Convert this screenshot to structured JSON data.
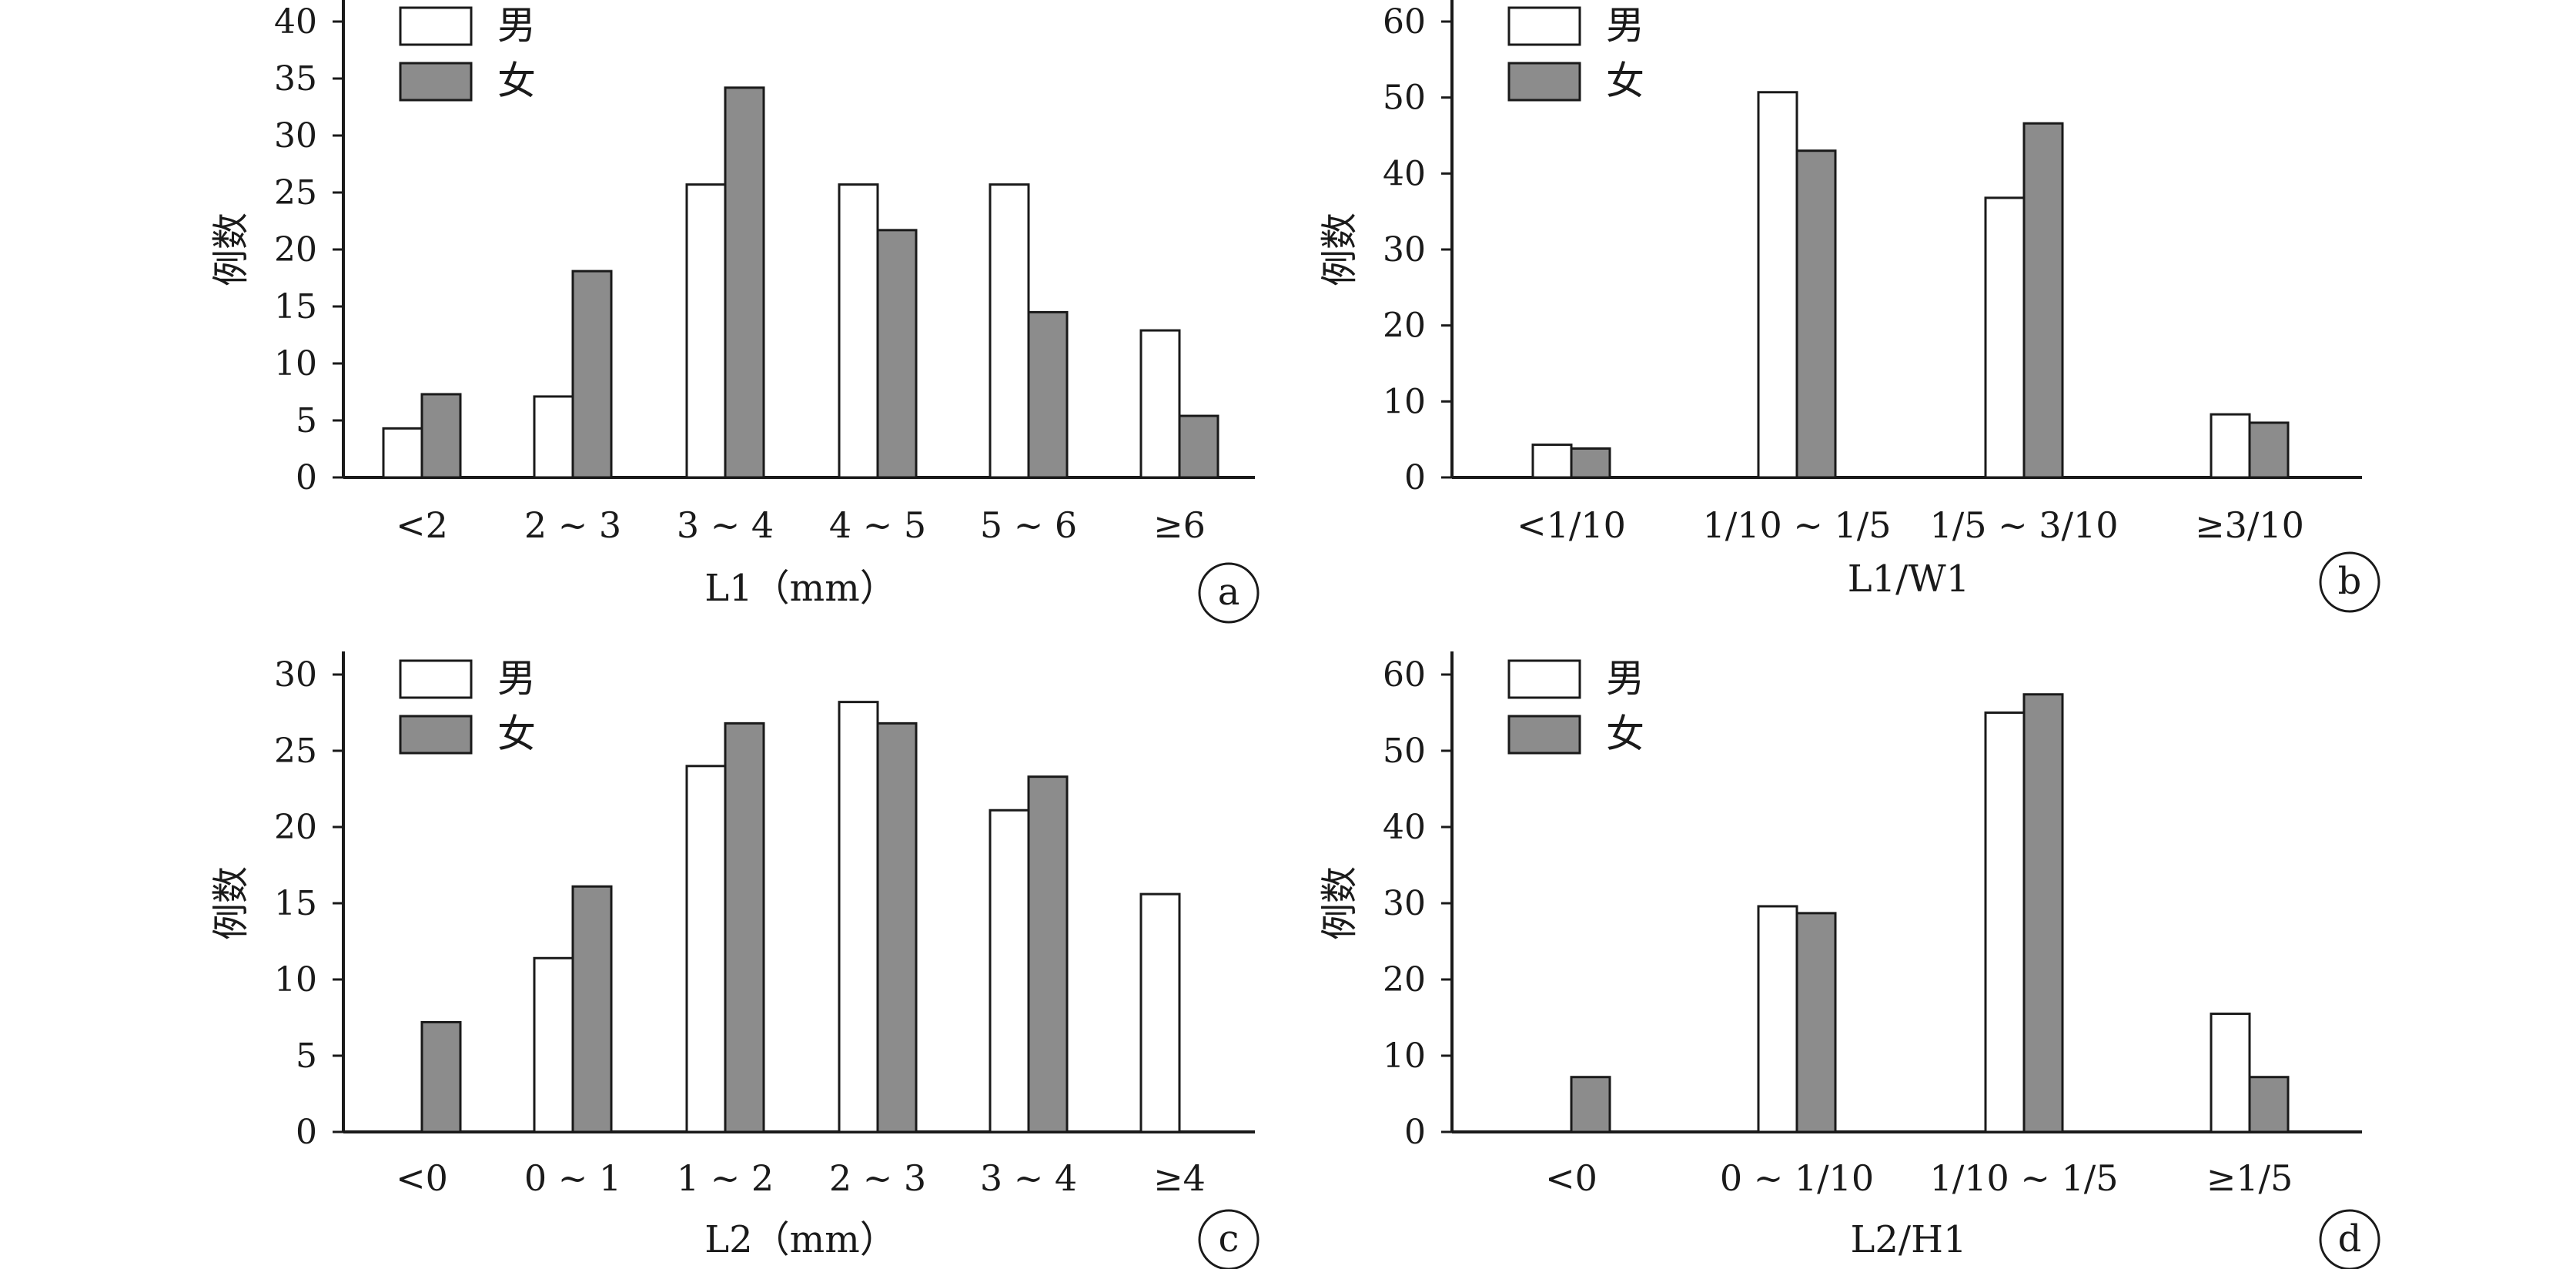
{
  "legend": {
    "male": "男",
    "female": "女"
  },
  "colors": {
    "male": "#ffffff",
    "female": "#8c8c8c",
    "stroke": "#1a1a1a"
  },
  "chart_data": [
    {
      "type": "bar",
      "panel": "a",
      "xlabel": "L1（mm）",
      "ylabel": "例数",
      "ylim": [
        0,
        40
      ],
      "yticks": [
        0,
        5,
        10,
        15,
        20,
        25,
        30,
        35,
        40
      ],
      "categories": [
        "<2",
        "2 ~ 3",
        "3 ~ 4",
        "4 ~ 5",
        "5 ~ 6",
        "≥6"
      ],
      "series": [
        {
          "name": "男",
          "values": [
            4.3,
            7.1,
            25.7,
            25.7,
            25.7,
            12.9
          ]
        },
        {
          "name": "女",
          "values": [
            7.3,
            18.1,
            34.2,
            21.7,
            14.5,
            5.4
          ]
        }
      ]
    },
    {
      "type": "bar",
      "panel": "b",
      "xlabel": "L1/W1",
      "ylabel": "例数",
      "ylim": [
        0,
        60
      ],
      "yticks": [
        0,
        10,
        20,
        30,
        40,
        50,
        60
      ],
      "categories": [
        "<1/10",
        "1/10 ~ 1/5",
        "1/5 ~ 3/10",
        "≥3/10"
      ],
      "series": [
        {
          "name": "男",
          "values": [
            4.3,
            50.7,
            36.8,
            8.3
          ]
        },
        {
          "name": "女",
          "values": [
            3.8,
            43.0,
            46.6,
            7.2
          ]
        }
      ]
    },
    {
      "type": "bar",
      "panel": "c",
      "xlabel": "L2（mm）",
      "ylabel": "例数",
      "ylim": [
        0,
        30
      ],
      "yticks": [
        0,
        5,
        10,
        15,
        20,
        25,
        30
      ],
      "categories": [
        "<0",
        "0 ~ 1",
        "1 ~ 2",
        "2 ~ 3",
        "3 ~ 4",
        "≥4"
      ],
      "series": [
        {
          "name": "男",
          "values": [
            0,
            11.4,
            24.0,
            28.2,
            21.1,
            15.6
          ]
        },
        {
          "name": "女",
          "values": [
            7.2,
            16.1,
            26.8,
            26.8,
            23.3,
            0
          ]
        }
      ]
    },
    {
      "type": "bar",
      "panel": "d",
      "xlabel": "L2/H1",
      "ylabel": "例数",
      "ylim": [
        0,
        60
      ],
      "yticks": [
        0,
        10,
        20,
        30,
        40,
        50,
        60
      ],
      "categories": [
        "<0",
        "0 ~ 1/10",
        "1/10 ~ 1/5",
        "≥1/5"
      ],
      "series": [
        {
          "name": "男",
          "values": [
            0,
            29.6,
            55.0,
            15.5
          ]
        },
        {
          "name": "女",
          "values": [
            7.2,
            28.7,
            57.4,
            7.2
          ]
        }
      ]
    }
  ]
}
